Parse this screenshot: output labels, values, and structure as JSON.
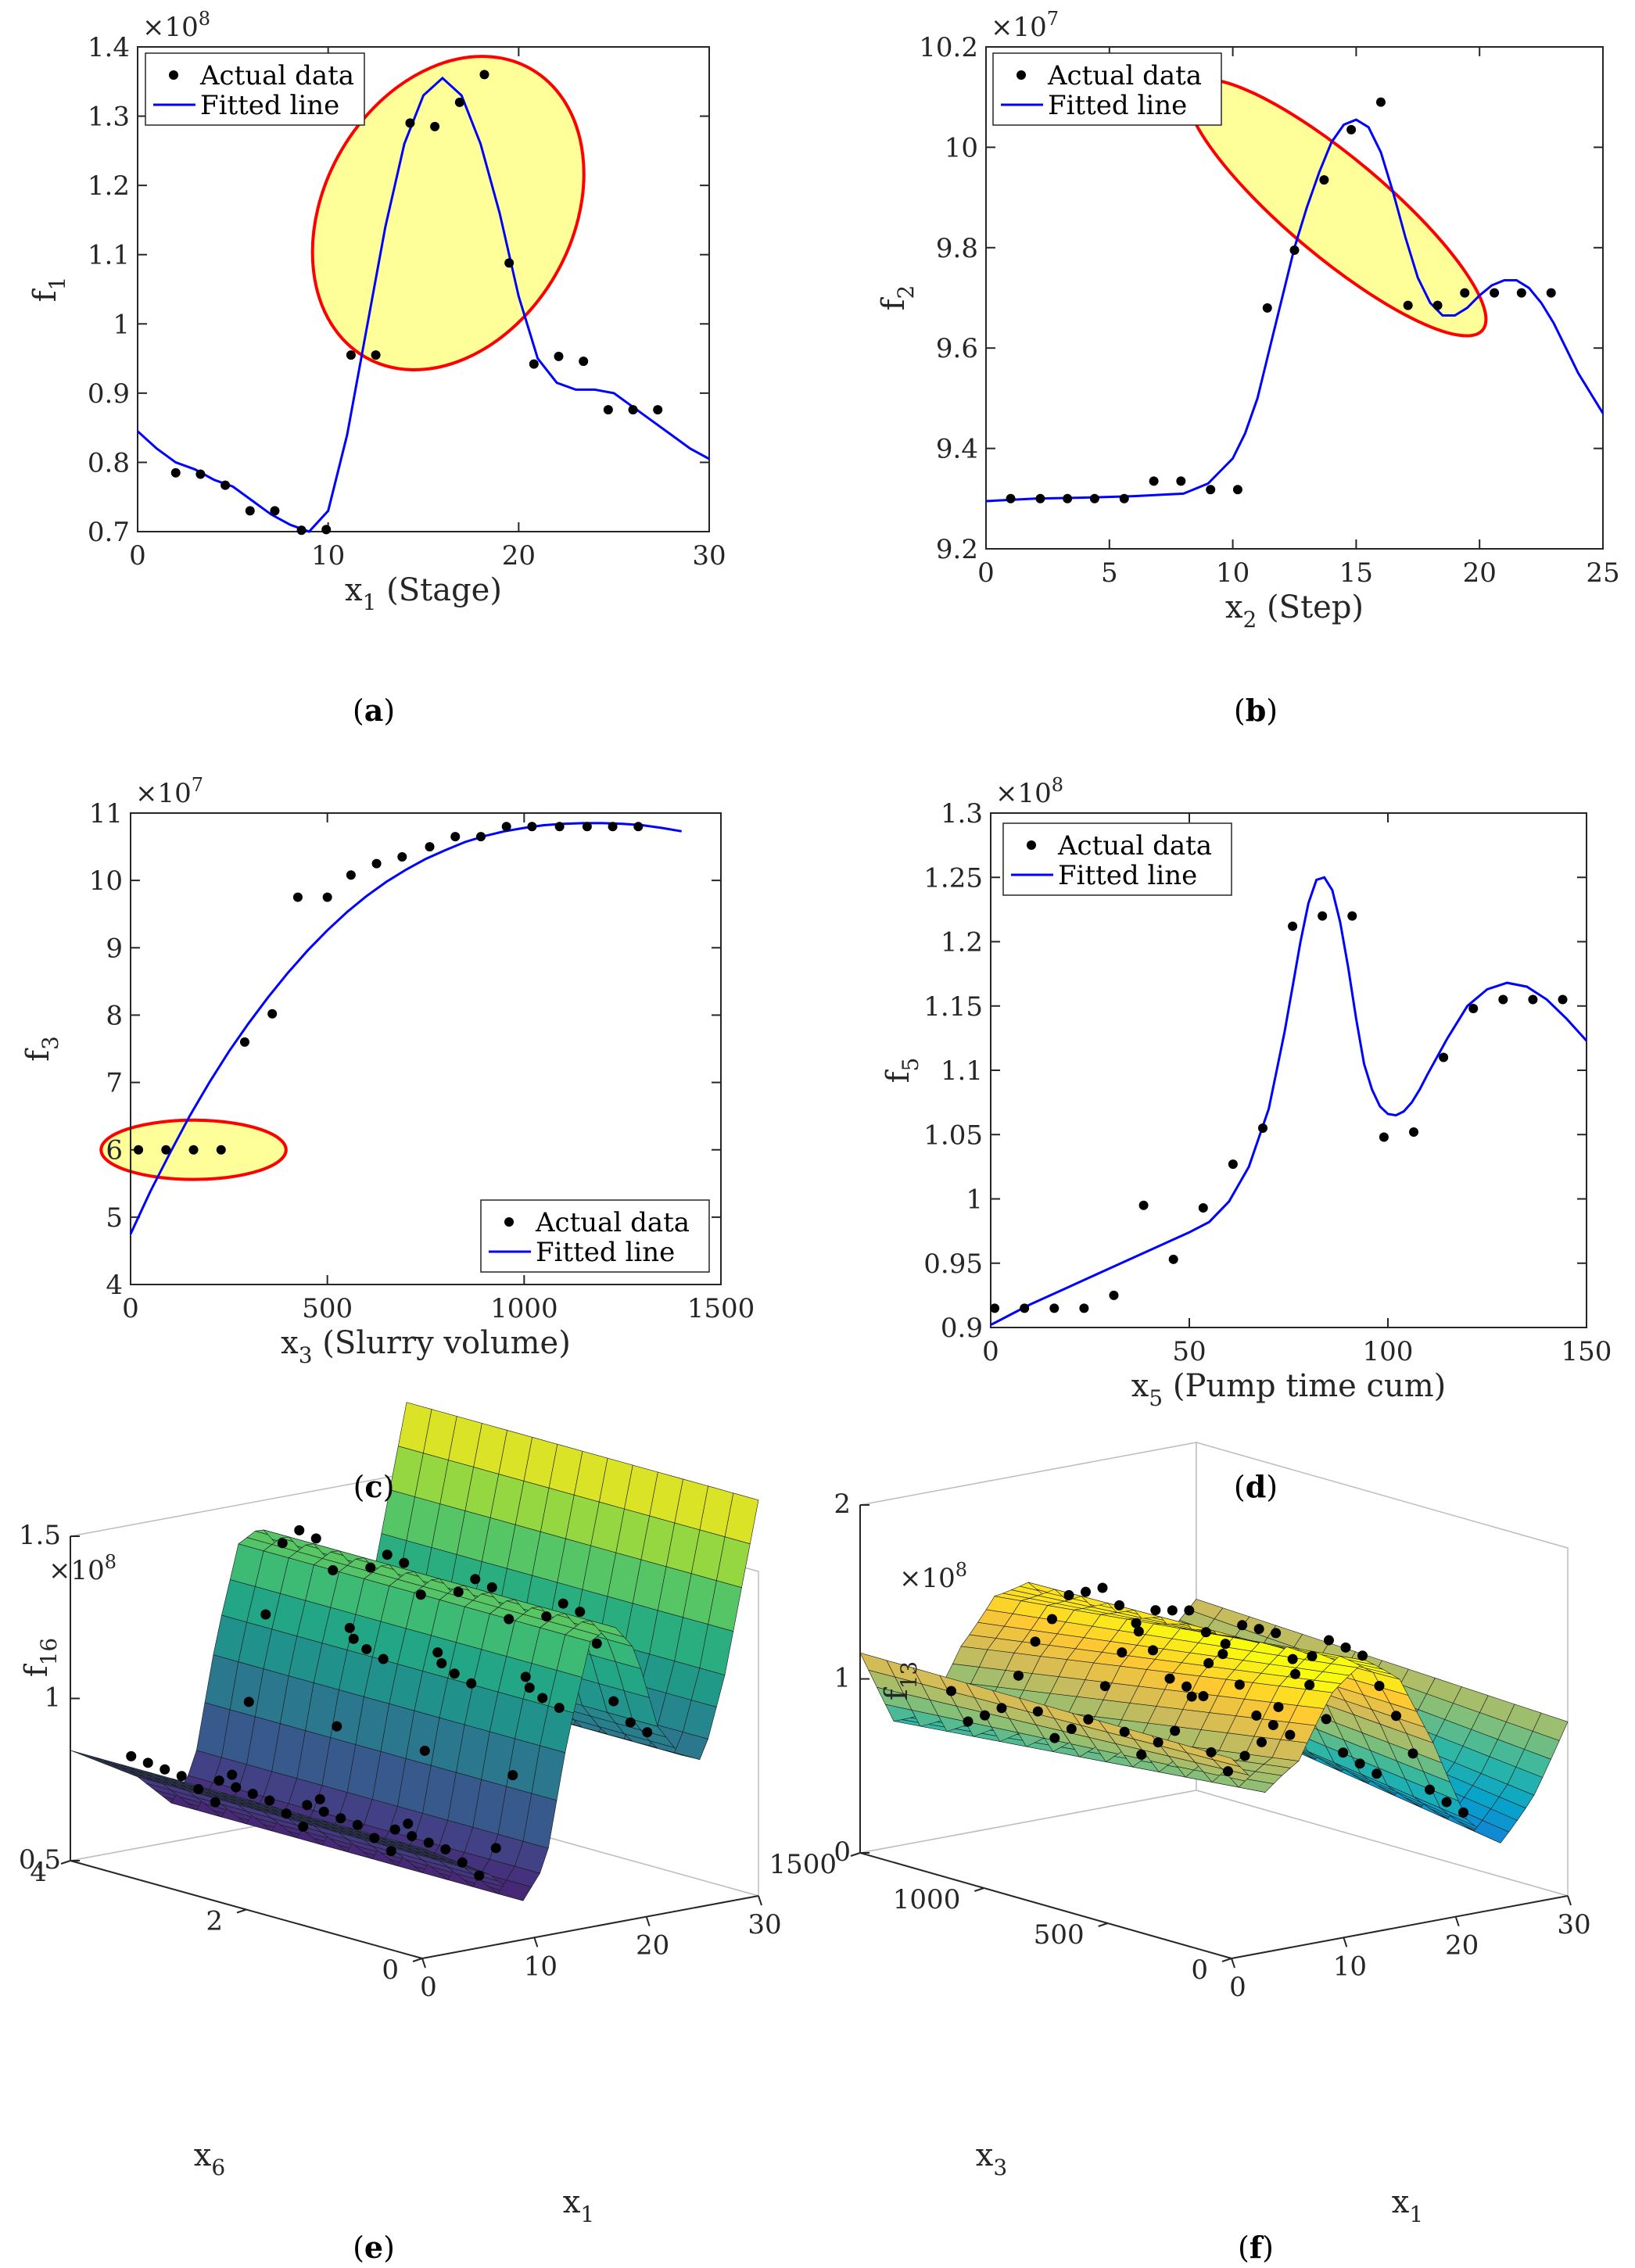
{
  "chart_data": [
    {
      "id": "a",
      "type": "scatter",
      "panel_label": "a",
      "exponent": "8",
      "ylabel_main": "f",
      "ylabel_sub": "1",
      "xlabel_main": "x",
      "xlabel_sub": "1",
      "xlabel_rest": " (Stage)",
      "xlim": [
        0,
        30
      ],
      "ylim": [
        0.7,
        1.4
      ],
      "xticks": [
        0,
        10,
        20,
        30
      ],
      "yticks": [
        0.7,
        0.8,
        0.9,
        1,
        1.1,
        1.2,
        1.3,
        1.4
      ],
      "ytick_labels": [
        "0.7",
        "0.8",
        "0.9",
        "1",
        "1.1",
        "1.2",
        "1.3",
        "1.4"
      ],
      "legend": {
        "position": "top-left",
        "entries": [
          "Actual data",
          "Fitted line"
        ]
      },
      "series": [
        {
          "name": "Actual data",
          "kind": "points",
          "x": [
            2,
            3.3,
            4.6,
            5.9,
            7.2,
            8.6,
            9.9,
            11.2,
            12.5,
            14.3,
            15.6,
            16.9,
            18.2,
            19.5,
            20.8,
            22.1,
            23.4,
            24.7,
            26,
            27.3
          ],
          "y": [
            0.785,
            0.783,
            0.767,
            0.73,
            0.73,
            0.702,
            0.703,
            0.955,
            0.955,
            1.29,
            1.285,
            1.32,
            1.36,
            1.088,
            0.942,
            0.953,
            0.946,
            0.876,
            0.876,
            0.876
          ]
        },
        {
          "name": "Fitted line",
          "kind": "line",
          "x": [
            0,
            1,
            2,
            3,
            4,
            5,
            6,
            7,
            8,
            9,
            10,
            11,
            12,
            13,
            14,
            15,
            16,
            17,
            18,
            19,
            20,
            21,
            22,
            23,
            24,
            25,
            26,
            27,
            28,
            29,
            30
          ],
          "y": [
            0.845,
            0.82,
            0.8,
            0.79,
            0.775,
            0.765,
            0.745,
            0.725,
            0.71,
            0.7,
            0.73,
            0.84,
            0.99,
            1.14,
            1.26,
            1.33,
            1.355,
            1.33,
            1.26,
            1.16,
            1.04,
            0.95,
            0.915,
            0.905,
            0.905,
            0.9,
            0.88,
            0.86,
            0.84,
            0.82,
            0.805
          ]
        }
      ],
      "highlights": [
        {
          "cx": 16.3,
          "cy": 1.16,
          "rx": 6.5,
          "ry": 0.24,
          "rot": 30
        }
      ]
    },
    {
      "id": "b",
      "type": "scatter",
      "panel_label": "b",
      "exponent": "7",
      "ylabel_main": "f",
      "ylabel_sub": "2",
      "xlabel_main": "x",
      "xlabel_sub": "2",
      "xlabel_rest": " (Step)",
      "xlim": [
        0,
        25
      ],
      "ylim": [
        9.2,
        10.2
      ],
      "xticks": [
        0,
        5,
        10,
        15,
        20,
        25
      ],
      "yticks": [
        9.2,
        9.4,
        9.6,
        9.8,
        10,
        10.2
      ],
      "ytick_labels": [
        "9.2",
        "9.4",
        "9.6",
        "9.8",
        "10",
        "10.2"
      ],
      "legend": {
        "position": "top-left",
        "entries": [
          "Actual data",
          "Fitted line"
        ]
      },
      "series": [
        {
          "name": "Actual data",
          "kind": "points",
          "x": [
            1,
            2.2,
            3.3,
            4.4,
            5.6,
            6.8,
            7.9,
            9.1,
            10.2,
            11.4,
            12.5,
            13.7,
            14.8,
            16,
            17.1,
            18.3,
            19.4,
            20.6,
            21.7,
            22.9
          ],
          "y": [
            9.3,
            9.3,
            9.3,
            9.3,
            9.3,
            9.335,
            9.335,
            9.318,
            9.318,
            9.68,
            9.795,
            9.935,
            10.035,
            10.09,
            9.685,
            9.685,
            9.71,
            9.71,
            9.71,
            9.71
          ]
        },
        {
          "name": "Fitted line",
          "kind": "line",
          "x": [
            0,
            2,
            4,
            6,
            8,
            9,
            10,
            10.5,
            11,
            11.5,
            12,
            12.5,
            13,
            13.5,
            14,
            14.5,
            15,
            15.5,
            16,
            16.5,
            17,
            17.5,
            18,
            18.5,
            19,
            19.5,
            20,
            20.5,
            21,
            21.5,
            22,
            22.5,
            23,
            23.5,
            24,
            24.5,
            25
          ],
          "y": [
            9.295,
            9.3,
            9.302,
            9.305,
            9.31,
            9.33,
            9.38,
            9.43,
            9.5,
            9.6,
            9.7,
            9.8,
            9.88,
            9.95,
            10.01,
            10.045,
            10.055,
            10.04,
            9.99,
            9.91,
            9.82,
            9.74,
            9.69,
            9.665,
            9.665,
            9.68,
            9.705,
            9.725,
            9.735,
            9.735,
            9.72,
            9.69,
            9.65,
            9.6,
            9.55,
            9.51,
            9.47
          ]
        }
      ],
      "highlights": [
        {
          "cx": 14.2,
          "cy": 9.88,
          "rx": 2.0,
          "ry": 0.38,
          "rot": -50
        }
      ]
    },
    {
      "id": "c",
      "type": "scatter",
      "panel_label": "c",
      "exponent": "7",
      "ylabel_main": "f",
      "ylabel_sub": "3",
      "xlabel_main": "x",
      "xlabel_sub": "3",
      "xlabel_rest": " (Slurry volume)",
      "xlim": [
        0,
        1500
      ],
      "ylim": [
        4,
        11
      ],
      "xticks": [
        0,
        500,
        1000,
        1500
      ],
      "yticks": [
        4,
        5,
        6,
        7,
        8,
        9,
        10,
        11
      ],
      "ytick_labels": [
        "4",
        "5",
        "6",
        "7",
        "8",
        "9",
        "10",
        "11"
      ],
      "legend": {
        "position": "bottom-right",
        "entries": [
          "Actual data",
          "Fitted line"
        ]
      },
      "series": [
        {
          "name": "Actual data",
          "kind": "points",
          "x": [
            20,
            90,
            160,
            230,
            290,
            360,
            425,
            500,
            560,
            625,
            690,
            760,
            825,
            890,
            955,
            1020,
            1090,
            1160,
            1225,
            1290
          ],
          "y": [
            6,
            6,
            6,
            6,
            7.6,
            8.02,
            9.75,
            9.75,
            10.08,
            10.25,
            10.35,
            10.5,
            10.65,
            10.65,
            10.8,
            10.8,
            10.8,
            10.8,
            10.8,
            10.8
          ]
        },
        {
          "name": "Fitted line",
          "kind": "line",
          "x": [
            0,
            50,
            100,
            150,
            200,
            250,
            300,
            350,
            400,
            450,
            500,
            550,
            600,
            650,
            700,
            750,
            800,
            850,
            900,
            950,
            1000,
            1050,
            1100,
            1150,
            1200,
            1250,
            1300,
            1350,
            1400
          ],
          "y": [
            4.75,
            5.38,
            5.95,
            6.5,
            7,
            7.46,
            7.88,
            8.27,
            8.63,
            8.96,
            9.26,
            9.53,
            9.77,
            9.98,
            10.16,
            10.32,
            10.45,
            10.57,
            10.66,
            10.73,
            10.78,
            10.82,
            10.84,
            10.85,
            10.85,
            10.84,
            10.82,
            10.78,
            10.73
          ]
        }
      ],
      "highlights": [
        {
          "cx": 160,
          "cy": 6.0,
          "rx": 235,
          "ry": 0.44,
          "rot": 0
        }
      ]
    },
    {
      "id": "d",
      "type": "scatter",
      "panel_label": "d",
      "exponent": "8",
      "ylabel_main": "f",
      "ylabel_sub": "5",
      "xlabel_main": "x",
      "xlabel_sub": "5",
      "xlabel_rest": " (Pump time cum)",
      "xlim": [
        0,
        150
      ],
      "ylim": [
        0.9,
        1.3
      ],
      "xticks": [
        0,
        50,
        100,
        150
      ],
      "yticks": [
        0.9,
        0.95,
        1,
        1.05,
        1.1,
        1.15,
        1.2,
        1.25,
        1.3
      ],
      "ytick_labels": [
        "0.9",
        "0.95",
        "1",
        "1.05",
        "1.1",
        "1.15",
        "1.2",
        "1.25",
        "1.3"
      ],
      "legend": {
        "position": "top-left",
        "entries": [
          "Actual data",
          "Fitted line"
        ]
      },
      "series": [
        {
          "name": "Actual data",
          "kind": "points",
          "x": [
            1,
            8.5,
            16,
            23.5,
            31,
            38.5,
            46,
            53.5,
            61,
            68.5,
            76,
            83.5,
            91,
            99,
            106.5,
            114,
            121.5,
            129,
            136.5,
            144
          ],
          "y": [
            0.915,
            0.915,
            0.915,
            0.915,
            0.925,
            0.995,
            0.953,
            0.993,
            1.027,
            1.055,
            1.212,
            1.22,
            1.22,
            1.048,
            1.052,
            1.11,
            1.148,
            1.155,
            1.155,
            1.155
          ]
        },
        {
          "name": "Fitted line",
          "kind": "line",
          "x": [
            0,
            5,
            10,
            15,
            20,
            25,
            30,
            35,
            40,
            45,
            50,
            55,
            60,
            65,
            70,
            72,
            74,
            76,
            78,
            80,
            82,
            84,
            86,
            88,
            90,
            92,
            94,
            96,
            98,
            100,
            102,
            104,
            106,
            108,
            110,
            115,
            120,
            125,
            130,
            135,
            140,
            145,
            150
          ],
          "y": [
            0.902,
            0.91,
            0.918,
            0.925,
            0.932,
            0.939,
            0.946,
            0.953,
            0.96,
            0.967,
            0.974,
            0.982,
            0.998,
            1.025,
            1.07,
            1.1,
            1.13,
            1.165,
            1.2,
            1.23,
            1.248,
            1.25,
            1.24,
            1.215,
            1.18,
            1.14,
            1.105,
            1.085,
            1.072,
            1.066,
            1.065,
            1.068,
            1.075,
            1.085,
            1.097,
            1.125,
            1.15,
            1.163,
            1.168,
            1.165,
            1.155,
            1.14,
            1.123
          ]
        }
      ],
      "highlights": []
    },
    {
      "id": "e",
      "type": "surface",
      "panel_label": "e",
      "exponent": "8",
      "zlabel_main": "f",
      "zlabel_sub": "16",
      "xlabel_main": "x",
      "xlabel_sub": "1",
      "ylabel_main": "x",
      "ylabel_sub": "6",
      "xlim": [
        0,
        30
      ],
      "ylim": [
        0,
        4
      ],
      "zlim": [
        0.5,
        1.5
      ],
      "xticks": [
        0,
        10,
        20,
        30
      ],
      "yticks": [
        0,
        2,
        4
      ],
      "zticks": [
        0.5,
        1,
        1.5
      ],
      "ztick_labels": [
        "0.5",
        "1",
        "1.5"
      ],
      "colormap": "viridis",
      "surface_profile": {
        "x1": [
          0,
          3,
          6,
          9,
          11,
          13,
          15,
          17,
          19,
          21,
          23,
          25,
          27,
          30
        ],
        "f": [
          0.84,
          0.78,
          0.72,
          0.62,
          0.72,
          1.1,
          1.38,
          1.42,
          1.33,
          1.08,
          0.98,
          0.95,
          1.2,
          1.72
        ]
      },
      "point_rows": {
        "x1": [
          1.5,
          3,
          4.5,
          6,
          7.5,
          9,
          10.5,
          12,
          13.5,
          15,
          16.5,
          18,
          19.5,
          21,
          22.5,
          24
        ],
        "x6": [
          0.5,
          1.5,
          2.5,
          3.5
        ]
      }
    },
    {
      "id": "f",
      "type": "surface",
      "panel_label": "f",
      "exponent": "8",
      "zlabel_main": "f",
      "zlabel_sub": "13",
      "xlabel_main": "x",
      "xlabel_sub": "1",
      "ylabel_main": "x",
      "ylabel_sub": "3",
      "xlim": [
        0,
        30
      ],
      "ylim": [
        0,
        1500
      ],
      "zlim": [
        0,
        2
      ],
      "xticks": [
        0,
        10,
        20,
        30
      ],
      "yticks": [
        0,
        500,
        1000,
        1500
      ],
      "zticks": [
        0,
        1,
        2
      ],
      "ztick_labels": [
        "0",
        "1",
        "2"
      ],
      "colormap": "parula",
      "surface_profile": {
        "x1": [
          0,
          3,
          6,
          9,
          12,
          15,
          18,
          21,
          24,
          27,
          30
        ],
        "f": [
          1.15,
          0.82,
          0.9,
          1.25,
          1.45,
          1.4,
          1.1,
          0.7,
          0.55,
          0.75,
          1.05
        ]
      },
      "point_rows": {
        "x1": [
          1.5,
          3,
          4.5,
          6,
          7.5,
          9,
          10.5,
          12,
          13.5,
          15,
          16.5,
          18,
          19.5,
          21,
          22.5,
          24
        ],
        "x6": [
          150,
          500,
          850,
          1200
        ]
      }
    }
  ],
  "legend_labels": {
    "actual": "Actual data",
    "fitted": "Fitted line"
  },
  "panels": [
    {
      "key": "a",
      "label_open": "(",
      "label_letter": "a",
      "label_close": ")"
    },
    {
      "key": "b",
      "label_open": "(",
      "label_letter": "b",
      "label_close": ")"
    },
    {
      "key": "c",
      "label_open": "(",
      "label_letter": "c",
      "label_close": ")"
    },
    {
      "key": "d",
      "label_open": "(",
      "label_letter": "d",
      "label_close": ")"
    },
    {
      "key": "e",
      "label_open": "(",
      "label_letter": "e",
      "label_close": ")"
    },
    {
      "key": "f",
      "label_open": "(",
      "label_letter": "f",
      "label_close": ")"
    }
  ],
  "colors": {
    "line": "#0000ff",
    "points": "#000000",
    "highlight_fill": "#ffff99",
    "highlight_stroke": "#ff0000",
    "axis": "#262626"
  }
}
